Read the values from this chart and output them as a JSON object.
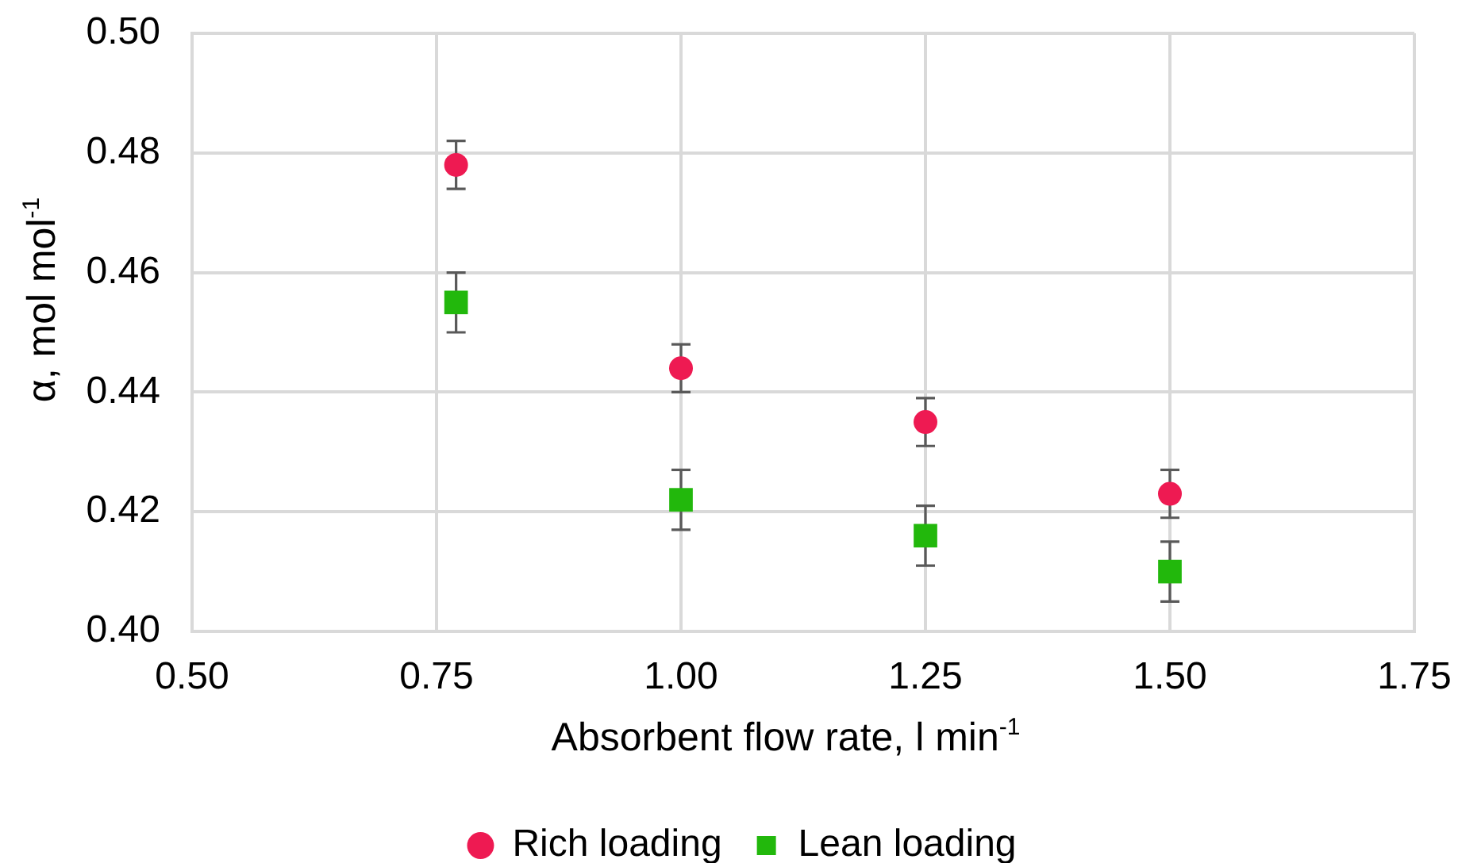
{
  "chart_data": {
    "type": "scatter",
    "xlabel": "Absorbent flow rate, l min$^{-1}$",
    "ylabel": "α, mol mol$^{-1}$",
    "x": [
      0.77,
      1.0,
      1.25,
      1.5
    ],
    "series": [
      {
        "name": "Rich loading",
        "color": "#ee1a52",
        "marker": "circle",
        "values": [
          0.478,
          0.444,
          0.435,
          0.423
        ],
        "errors": [
          0.004,
          0.004,
          0.004,
          0.004
        ]
      },
      {
        "name": "Lean loading",
        "color": "#22b80c",
        "marker": "square",
        "values": [
          0.455,
          0.422,
          0.416,
          0.41
        ],
        "errors": [
          0.005,
          0.005,
          0.005,
          0.005
        ]
      }
    ],
    "xlim": [
      0.5,
      1.75
    ],
    "ylim": [
      0.4,
      0.5
    ],
    "xticks": [
      {
        "value": 0.5,
        "label": "0.50"
      },
      {
        "value": 0.75,
        "label": "0.75"
      },
      {
        "value": 1.0,
        "label": "1.00"
      },
      {
        "value": 1.25,
        "label": "1.25"
      },
      {
        "value": 1.5,
        "label": "1.50"
      },
      {
        "value": 1.75,
        "label": "1.75"
      }
    ],
    "yticks": [
      {
        "value": 0.4,
        "label": "0.40"
      },
      {
        "value": 0.42,
        "label": "0.42"
      },
      {
        "value": 0.44,
        "label": "0.44"
      },
      {
        "value": 0.46,
        "label": "0.46"
      },
      {
        "value": 0.48,
        "label": "0.48"
      },
      {
        "value": 0.5,
        "label": "0.50"
      }
    ],
    "grid": true,
    "legend": "bottom"
  }
}
